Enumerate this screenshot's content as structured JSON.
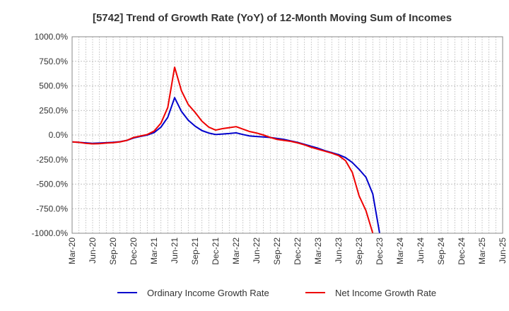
{
  "chart_data": {
    "type": "line",
    "title": "[5742]  Trend of Growth Rate (YoY) of 12-Month Moving Sum of Incomes",
    "xlabel": "",
    "ylabel": "",
    "ylim": [
      -1000,
      1000
    ],
    "y_ticks": [
      1000,
      750,
      500,
      250,
      0,
      -250,
      -500,
      -750,
      -1000
    ],
    "y_tick_labels": [
      "1000.0%",
      "750.0%",
      "500.0%",
      "250.0%",
      "0.0%",
      "-250.0%",
      "-500.0%",
      "-750.0%",
      "-1000.0%"
    ],
    "x_tick_labels": [
      "Mar-20",
      "Jun-20",
      "Sep-20",
      "Dec-20",
      "Mar-21",
      "Jun-21",
      "Sep-21",
      "Dec-21",
      "Mar-22",
      "Jun-22",
      "Sep-22",
      "Dec-22",
      "Mar-23",
      "Jun-23",
      "Sep-23",
      "Dec-23",
      "Mar-24",
      "Jun-24",
      "Sep-24",
      "Dec-24",
      "Mar-25",
      "Jun-25"
    ],
    "x_months": [
      "2020-03",
      "2020-04",
      "2020-05",
      "2020-06",
      "2020-07",
      "2020-08",
      "2020-09",
      "2020-10",
      "2020-11",
      "2020-12",
      "2021-01",
      "2021-02",
      "2021-03",
      "2021-04",
      "2021-05",
      "2021-06",
      "2021-07",
      "2021-08",
      "2021-09",
      "2021-10",
      "2021-11",
      "2021-12",
      "2022-01",
      "2022-02",
      "2022-03",
      "2022-04",
      "2022-05",
      "2022-06",
      "2022-07",
      "2022-08",
      "2022-09",
      "2022-10",
      "2022-11",
      "2022-12",
      "2023-01",
      "2023-02",
      "2023-03",
      "2023-04",
      "2023-05",
      "2023-06",
      "2023-07",
      "2023-08",
      "2023-09",
      "2023-10",
      "2023-11",
      "2023-12"
    ],
    "grid": true,
    "legend_position": "bottom",
    "series": [
      {
        "name": "Ordinary Income Growth Rate",
        "color": "#0000cc",
        "values": [
          -70,
          -75,
          -80,
          -85,
          -82,
          -78,
          -75,
          -68,
          -55,
          -30,
          -15,
          0,
          25,
          80,
          180,
          380,
          240,
          150,
          90,
          45,
          20,
          5,
          10,
          15,
          22,
          5,
          -10,
          -15,
          -20,
          -25,
          -35,
          -45,
          -60,
          -75,
          -95,
          -115,
          -135,
          -160,
          -180,
          -200,
          -230,
          -280,
          -350,
          -430,
          -600,
          -1000
        ]
      },
      {
        "name": "Net Income Growth Rate",
        "color": "#ee0000",
        "values": [
          -70,
          -75,
          -85,
          -90,
          -88,
          -82,
          -78,
          -70,
          -55,
          -25,
          -10,
          5,
          40,
          120,
          280,
          690,
          450,
          310,
          230,
          140,
          80,
          50,
          65,
          75,
          85,
          60,
          35,
          20,
          0,
          -25,
          -45,
          -55,
          -65,
          -80,
          -100,
          -125,
          -145,
          -165,
          -185,
          -210,
          -260,
          -380,
          -620,
          -770,
          -1000,
          null
        ]
      }
    ]
  }
}
